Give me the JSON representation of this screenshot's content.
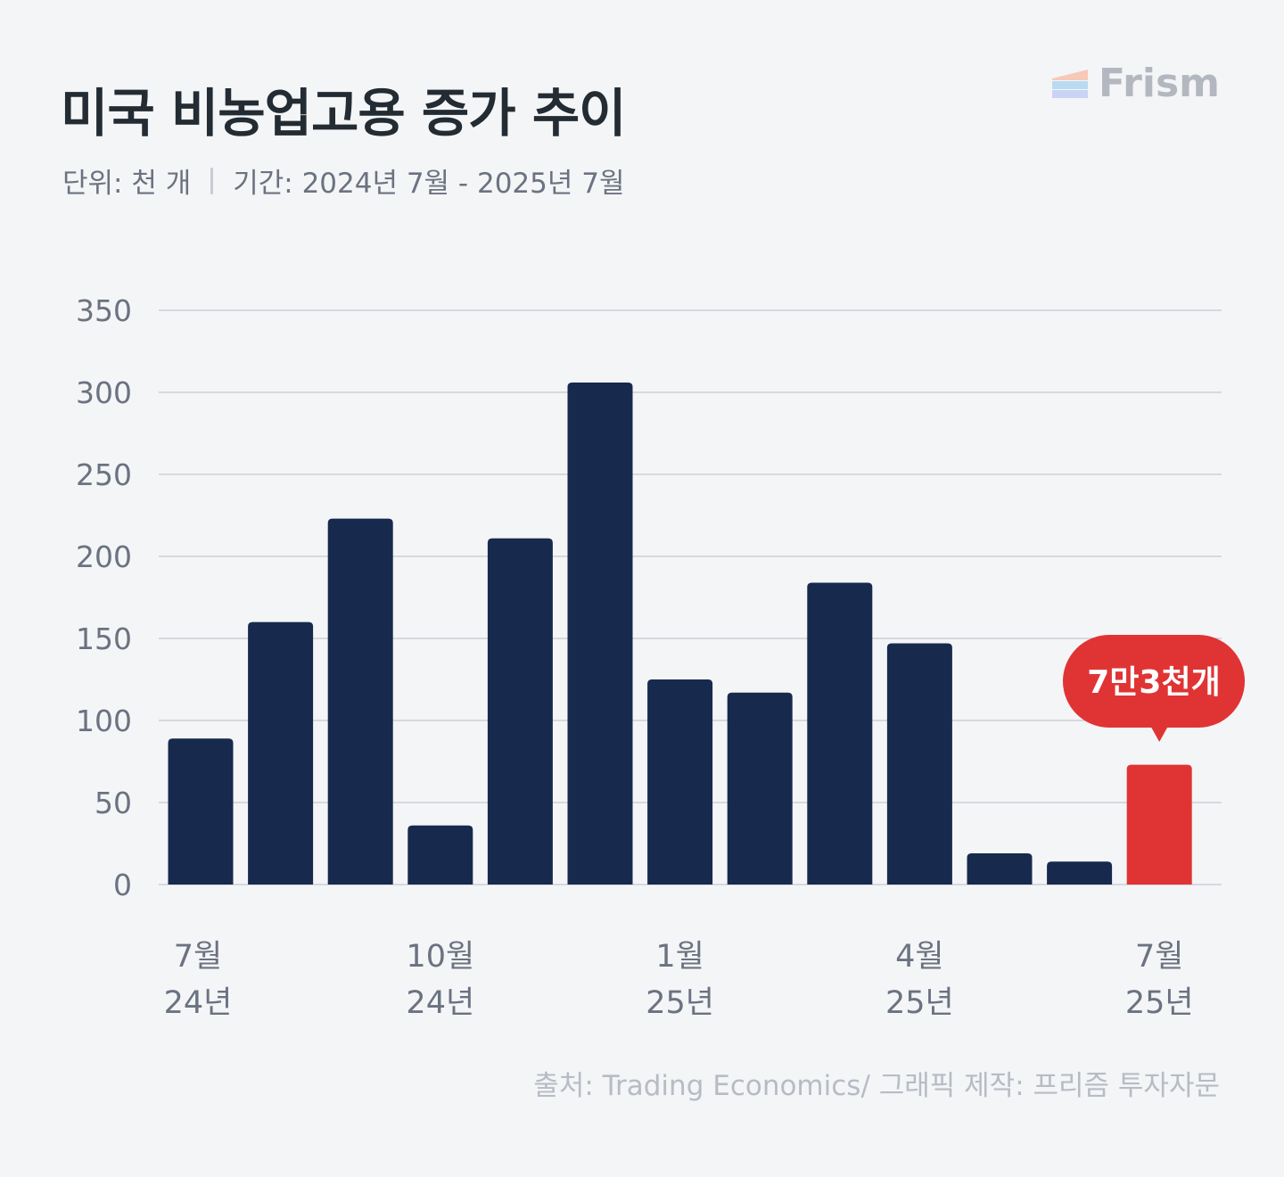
{
  "header": {
    "title": "미국 비농업고용 증가 추이",
    "unit": "단위: 천 개",
    "period": "기간: 2024년 7월 - 2025년 7월"
  },
  "brand": {
    "name": "Frism"
  },
  "source": "출처: Trading Economics/ 그래픽 제작: 프리즘 투자자문",
  "colors": {
    "bar": "#172a4e",
    "highlight": "#e03434",
    "grid": "#d6d9de",
    "axis_text": "#6b7280"
  },
  "chart_data": {
    "type": "bar",
    "values": [
      89,
      160,
      223,
      36,
      211,
      306,
      125,
      117,
      184,
      147,
      19,
      14,
      73
    ],
    "highlight_index": 12,
    "callout": "7만3천개",
    "y_ticks": [
      0,
      50,
      100,
      150,
      200,
      250,
      300,
      350
    ],
    "ylim": [
      0,
      350
    ],
    "x_tick_labels": [
      {
        "index": 0,
        "lines": [
          "7월",
          "24년"
        ]
      },
      {
        "index": 3,
        "lines": [
          "10월",
          "24년"
        ]
      },
      {
        "index": 6,
        "lines": [
          "1월",
          "25년"
        ]
      },
      {
        "index": 9,
        "lines": [
          "4월",
          "25년"
        ]
      },
      {
        "index": 12,
        "lines": [
          "7월",
          "25년"
        ]
      }
    ],
    "grid": true
  }
}
